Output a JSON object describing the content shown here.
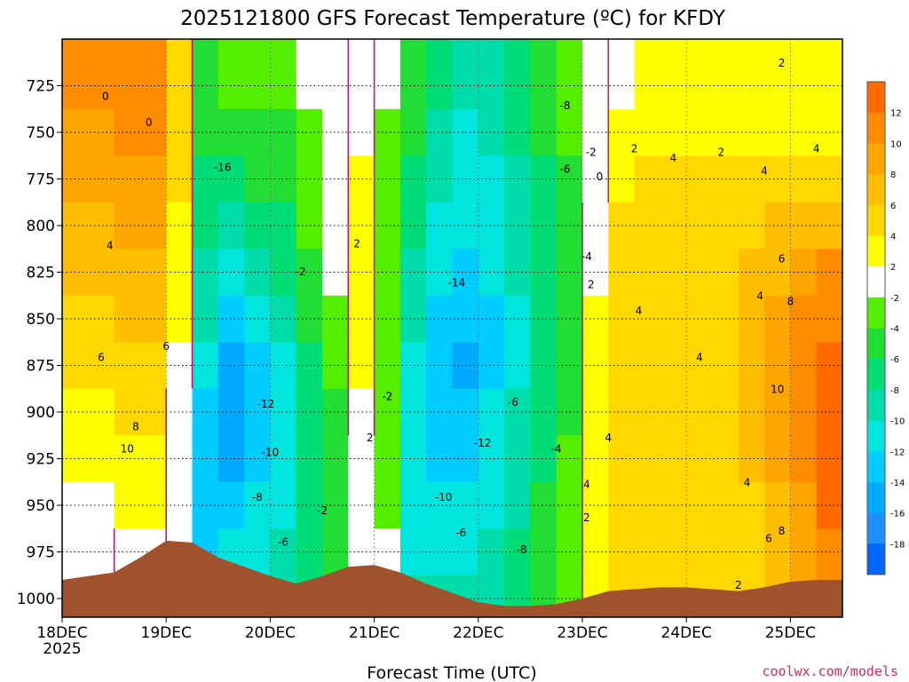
{
  "chart_data": {
    "type": "heatmap",
    "title": "2025121800 GFS Forecast Temperature (ºC) for KFDY",
    "xlabel": "Forecast Time (UTC)",
    "ylabel": "",
    "x_ticks": [
      {
        "label": "18DEC",
        "sublabel": "2025",
        "hour": 0
      },
      {
        "label": "19DEC",
        "sublabel": "",
        "hour": 24
      },
      {
        "label": "20DEC",
        "sublabel": "",
        "hour": 48
      },
      {
        "label": "21DEC",
        "sublabel": "",
        "hour": 72
      },
      {
        "label": "22DEC",
        "sublabel": "",
        "hour": 96
      },
      {
        "label": "23DEC",
        "sublabel": "",
        "hour": 120
      },
      {
        "label": "24DEC",
        "sublabel": "",
        "hour": 144
      },
      {
        "label": "25DEC",
        "sublabel": "",
        "hour": 168
      }
    ],
    "xlim_hours": [
      0,
      180
    ],
    "y_ticks": [
      "725",
      "750",
      "775",
      "800",
      "825",
      "850",
      "875",
      "900",
      "925",
      "950",
      "975",
      "1000"
    ],
    "ylim_hpa": [
      700,
      1010
    ],
    "grid": true,
    "colorbar": {
      "labels": [
        "12",
        "10",
        "8",
        "6",
        "4",
        "2",
        "-2",
        "-4",
        "-6",
        "-8",
        "-10",
        "-12",
        "-14",
        "-16",
        "-18"
      ],
      "colors": [
        "#ff6a00",
        "#ff8c00",
        "#ffa500",
        "#ffbf00",
        "#ffd800",
        "#ffff00",
        "#ffffff",
        "#55ee00",
        "#22dd33",
        "#00dd77",
        "#00ddaa",
        "#00e5dd",
        "#00ccff",
        "#00aaff",
        "#1e90ff",
        "#0066ff"
      ]
    },
    "ground_color": "#a0522d",
    "freezing_line_color": "#c0166e",
    "bands": [
      {
        "h": 0,
        "v": [
          10,
          9,
          8,
          7,
          6,
          5,
          4,
          3,
          2,
          1,
          0,
          -1
        ]
      },
      {
        "h": 6,
        "v": [
          10,
          9,
          8,
          7,
          6,
          5,
          4,
          3,
          2,
          1,
          0,
          -1
        ]
      },
      {
        "h": 12,
        "v": [
          11,
          10,
          9,
          8,
          7,
          6,
          5,
          4,
          3,
          2,
          1,
          0
        ]
      },
      {
        "h": 18,
        "v": [
          11,
          10,
          9,
          8,
          7,
          6,
          5,
          4,
          3,
          2,
          1,
          0
        ]
      },
      {
        "h": 24,
        "v": [
          5,
          4,
          4,
          3,
          2,
          2,
          1,
          0,
          -1,
          -1,
          -2,
          -2
        ]
      },
      {
        "h": 30,
        "v": [
          -5,
          -6,
          -7,
          -8,
          -9,
          -10,
          -12,
          -13,
          -14,
          -14,
          -13,
          -12
        ]
      },
      {
        "h": 36,
        "v": [
          -4,
          -6,
          -8,
          -10,
          -12,
          -14,
          -16,
          -16,
          -15,
          -14,
          -12,
          -11
        ]
      },
      {
        "h": 42,
        "v": [
          -4,
          -5,
          -6,
          -8,
          -10,
          -12,
          -13,
          -14,
          -13,
          -12,
          -11,
          -10
        ]
      },
      {
        "h": 48,
        "v": [
          -4,
          -5,
          -6,
          -7,
          -8,
          -10,
          -11,
          -12,
          -12,
          -11,
          -10,
          -9
        ]
      },
      {
        "h": 54,
        "v": [
          -2,
          -3,
          -3,
          -4,
          -5,
          -6,
          -7,
          -8,
          -8,
          -8,
          -7,
          -7
        ]
      },
      {
        "h": 60,
        "v": [
          0,
          0,
          -1,
          -1,
          -2,
          -3,
          -4,
          -5,
          -5,
          -6,
          -5,
          -5
        ]
      },
      {
        "h": 66,
        "v": [
          1,
          1,
          2,
          3,
          3,
          3,
          2,
          1,
          0,
          0,
          -1,
          -1
        ]
      },
      {
        "h": 72,
        "v": [
          -2,
          -3,
          -4,
          -4,
          -4,
          -4,
          -4,
          -4,
          -3,
          -3,
          -2,
          -2
        ]
      },
      {
        "h": 78,
        "v": [
          -5,
          -6,
          -7,
          -8,
          -9,
          -10,
          -11,
          -12,
          -12,
          -12,
          -11,
          -10
        ]
      },
      {
        "h": 84,
        "v": [
          -8,
          -9,
          -10,
          -11,
          -12,
          -13,
          -14,
          -14,
          -13,
          -12,
          -11,
          -10
        ]
      },
      {
        "h": 90,
        "v": [
          -10,
          -11,
          -12,
          -12,
          -13,
          -14,
          -15,
          -14,
          -13,
          -12,
          -11,
          -10
        ]
      },
      {
        "h": 96,
        "v": [
          -10,
          -10,
          -11,
          -11,
          -12,
          -13,
          -13,
          -12,
          -12,
          -11,
          -10,
          -9
        ]
      },
      {
        "h": 102,
        "v": [
          -8,
          -8,
          -9,
          -9,
          -10,
          -11,
          -11,
          -10,
          -10,
          -9,
          -8,
          -7
        ]
      },
      {
        "h": 108,
        "v": [
          -6,
          -6,
          -7,
          -7,
          -8,
          -8,
          -8,
          -7,
          -7,
          -6,
          -6,
          -5
        ]
      },
      {
        "h": 114,
        "v": [
          -4,
          -4,
          -5,
          -5,
          -6,
          -6,
          -5,
          -5,
          -4,
          -4,
          -3,
          -3
        ]
      },
      {
        "h": 120,
        "v": [
          -2,
          -1,
          0,
          1,
          1,
          2,
          2,
          2,
          3,
          3,
          2,
          2
        ]
      },
      {
        "h": 126,
        "v": [
          1,
          2,
          3,
          4,
          4,
          5,
          5,
          5,
          5,
          5,
          5,
          5
        ]
      },
      {
        "h": 132,
        "v": [
          2,
          3,
          4,
          4,
          5,
          5,
          5,
          5,
          5,
          5,
          5,
          5
        ]
      },
      {
        "h": 138,
        "v": [
          2,
          3,
          4,
          5,
          5,
          5,
          5,
          5,
          5,
          5,
          5,
          5
        ]
      },
      {
        "h": 144,
        "v": [
          2,
          3,
          4,
          5,
          5,
          5,
          5,
          5,
          5,
          5,
          5,
          5
        ]
      },
      {
        "h": 150,
        "v": [
          2,
          3,
          4,
          4,
          5,
          5,
          5,
          5,
          5,
          5,
          5,
          5
        ]
      },
      {
        "h": 156,
        "v": [
          2,
          3,
          4,
          5,
          6,
          6,
          6,
          6,
          6,
          5,
          5,
          5
        ]
      },
      {
        "h": 162,
        "v": [
          2,
          3,
          4,
          6,
          7,
          8,
          8,
          8,
          8,
          7,
          7,
          6
        ]
      },
      {
        "h": 168,
        "v": [
          2,
          3,
          5,
          7,
          9,
          10,
          10,
          10,
          10,
          9,
          9,
          8
        ]
      },
      {
        "h": 174,
        "v": [
          2,
          3,
          5,
          7,
          10,
          11,
          12,
          13,
          13,
          12,
          11,
          10
        ]
      }
    ],
    "ground_pressure": [
      {
        "h": 0,
        "p": 990
      },
      {
        "h": 12,
        "p": 986
      },
      {
        "h": 18,
        "p": 978
      },
      {
        "h": 24,
        "p": 969
      },
      {
        "h": 30,
        "p": 970
      },
      {
        "h": 36,
        "p": 978
      },
      {
        "h": 42,
        "p": 983
      },
      {
        "h": 48,
        "p": 988
      },
      {
        "h": 54,
        "p": 992
      },
      {
        "h": 60,
        "p": 988
      },
      {
        "h": 66,
        "p": 983
      },
      {
        "h": 72,
        "p": 982
      },
      {
        "h": 78,
        "p": 986
      },
      {
        "h": 84,
        "p": 992
      },
      {
        "h": 90,
        "p": 997
      },
      {
        "h": 96,
        "p": 1002
      },
      {
        "h": 102,
        "p": 1004
      },
      {
        "h": 108,
        "p": 1004
      },
      {
        "h": 114,
        "p": 1003
      },
      {
        "h": 120,
        "p": 1000
      },
      {
        "h": 126,
        "p": 996
      },
      {
        "h": 132,
        "p": 995
      },
      {
        "h": 138,
        "p": 994
      },
      {
        "h": 144,
        "p": 994
      },
      {
        "h": 150,
        "p": 995
      },
      {
        "h": 156,
        "p": 996
      },
      {
        "h": 162,
        "p": 994
      },
      {
        "h": 168,
        "p": 991
      },
      {
        "h": 174,
        "p": 990
      },
      {
        "h": 180,
        "p": 990
      }
    ],
    "contour_labels": [
      {
        "text": "0",
        "h": 10,
        "p": 731
      },
      {
        "text": "0",
        "h": 20,
        "p": 745
      },
      {
        "text": "4",
        "h": 11,
        "p": 811
      },
      {
        "text": "6",
        "h": 9,
        "p": 871
      },
      {
        "text": "6",
        "h": 24,
        "p": 865
      },
      {
        "text": "8",
        "h": 17,
        "p": 908
      },
      {
        "text": "10",
        "h": 15,
        "p": 920
      },
      {
        "text": "-16",
        "h": 37,
        "p": 769
      },
      {
        "text": "-12",
        "h": 47,
        "p": 896
      },
      {
        "text": "-10",
        "h": 48,
        "p": 922
      },
      {
        "text": "-8",
        "h": 45,
        "p": 946
      },
      {
        "text": "-6",
        "h": 51,
        "p": 970
      },
      {
        "text": "-2",
        "h": 55,
        "p": 825
      },
      {
        "text": "-2",
        "h": 60,
        "p": 953
      },
      {
        "text": "2",
        "h": 68,
        "p": 810
      },
      {
        "text": "-2",
        "h": 75,
        "p": 892
      },
      {
        "text": "2",
        "h": 71,
        "p": 914
      },
      {
        "text": "-14",
        "h": 91,
        "p": 831
      },
      {
        "text": "-12",
        "h": 97,
        "p": 917
      },
      {
        "text": "-10",
        "h": 88,
        "p": 946
      },
      {
        "text": "-6",
        "h": 92,
        "p": 965
      },
      {
        "text": "-8",
        "h": 106,
        "p": 974
      },
      {
        "text": "-6",
        "h": 104,
        "p": 895
      },
      {
        "text": "-4",
        "h": 114,
        "p": 920
      },
      {
        "text": "-8",
        "h": 116,
        "p": 736
      },
      {
        "text": "-6",
        "h": 116,
        "p": 770
      },
      {
        "text": "-2",
        "h": 122,
        "p": 761
      },
      {
        "text": "0",
        "h": 124,
        "p": 774
      },
      {
        "text": "-4",
        "h": 121,
        "p": 817
      },
      {
        "text": "2",
        "h": 122,
        "p": 832
      },
      {
        "text": "4",
        "h": 121,
        "p": 939
      },
      {
        "text": "2",
        "h": 121,
        "p": 957
      },
      {
        "text": "4",
        "h": 126,
        "p": 914
      },
      {
        "text": "4",
        "h": 133,
        "p": 846
      },
      {
        "text": "2",
        "h": 132,
        "p": 759
      },
      {
        "text": "4",
        "h": 141,
        "p": 764
      },
      {
        "text": "2",
        "h": 152,
        "p": 761
      },
      {
        "text": "4",
        "h": 147,
        "p": 871
      },
      {
        "text": "4",
        "h": 162,
        "p": 771
      },
      {
        "text": "2",
        "h": 166,
        "p": 713
      },
      {
        "text": "4",
        "h": 174,
        "p": 759
      },
      {
        "text": "6",
        "h": 166,
        "p": 818
      },
      {
        "text": "4",
        "h": 161,
        "p": 838
      },
      {
        "text": "8",
        "h": 168,
        "p": 841
      },
      {
        "text": "10",
        "h": 165,
        "p": 888
      },
      {
        "text": "4",
        "h": 158,
        "p": 938
      },
      {
        "text": "8",
        "h": 166,
        "p": 964
      },
      {
        "text": "6",
        "h": 163,
        "p": 968
      },
      {
        "text": "2",
        "h": 156,
        "p": 993
      }
    ]
  },
  "credit": "coolwx.com/models"
}
